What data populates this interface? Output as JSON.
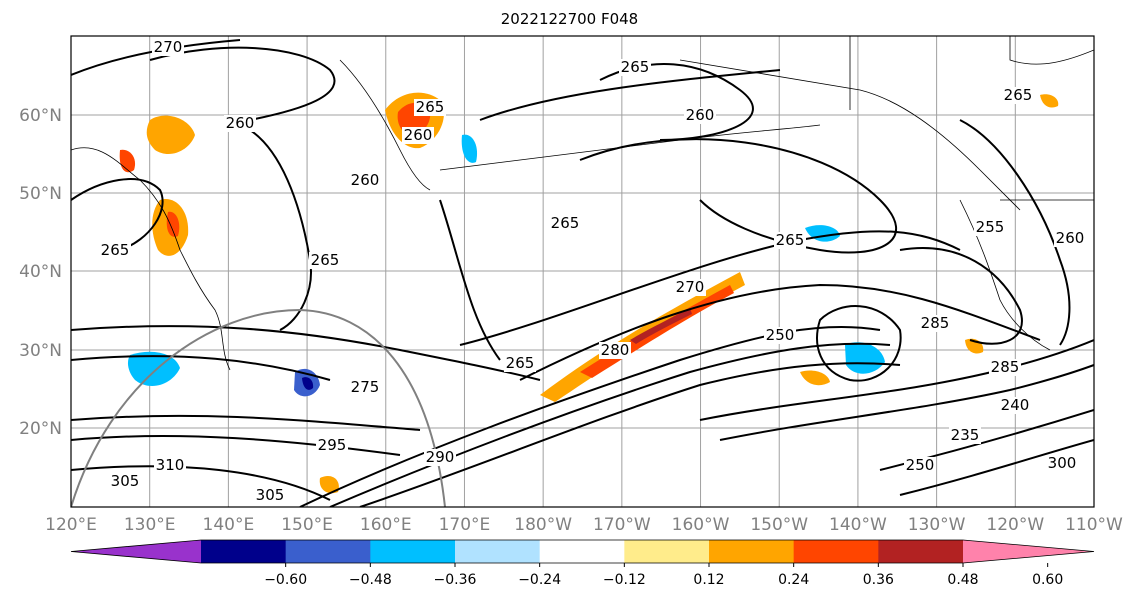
{
  "title": "2022122700 F048",
  "map": {
    "lat_labels": [
      "60°N",
      "50°N",
      "40°N",
      "30°N",
      "20°N"
    ],
    "lon_labels": [
      "120°E",
      "130°E",
      "140°E",
      "150°E",
      "160°E",
      "170°E",
      "180°W",
      "170°W",
      "160°W",
      "150°W",
      "140°W",
      "130°W",
      "120°W",
      "110°W"
    ],
    "contour_labels": [
      "270",
      "265",
      "260",
      "265",
      "260",
      "260",
      "265",
      "265",
      "265",
      "265",
      "260",
      "265",
      "270",
      "265",
      "275",
      "285",
      "285",
      "280",
      "240",
      "235",
      "250",
      "255",
      "300",
      "305",
      "295",
      "310",
      "305",
      "290",
      "250",
      "260"
    ]
  },
  "colorbar": {
    "ticks": [
      "−0.60",
      "−0.48",
      "−0.36",
      "−0.24",
      "−0.12",
      "0.12",
      "0.24",
      "0.36",
      "0.48",
      "0.60"
    ],
    "colors": [
      "#9932cc",
      "#00008b",
      "#3a5fcd",
      "#00bfff",
      "#b0e2ff",
      "#ffffff",
      "#ffec8b",
      "#ffa500",
      "#ff4500",
      "#b22222",
      "#ff82ab"
    ]
  }
}
